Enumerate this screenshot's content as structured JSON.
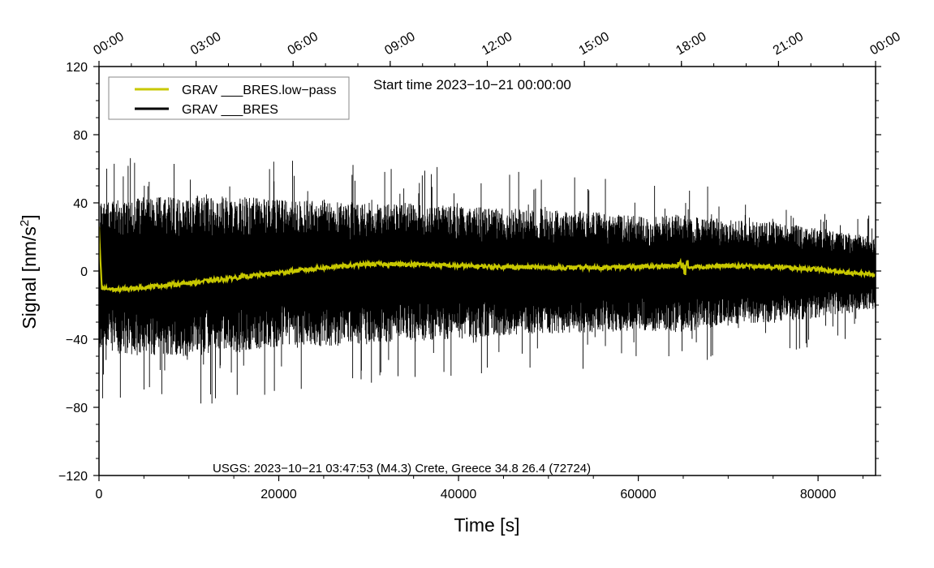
{
  "chart_data": {
    "type": "line",
    "title": "",
    "xlabel": "Time [s]",
    "ylabel_main": "Signal [nm/s",
    "ylabel_sup": "2",
    "ylabel_tail": "]",
    "xlim": [
      0,
      86400
    ],
    "ylim": [
      -120,
      120
    ],
    "x_ticks": [
      0,
      20000,
      40000,
      60000,
      80000
    ],
    "x_tick_labels": [
      "0",
      "20000",
      "40000",
      "60000",
      "80000"
    ],
    "y_ticks": [
      120,
      80,
      40,
      0,
      -40,
      -80,
      -120
    ],
    "y_tick_labels": [
      "120",
      "80",
      "40",
      "0",
      "−40",
      "−80",
      "−120"
    ],
    "top_axis_ticks": [
      0,
      10800,
      21600,
      32400,
      43200,
      54000,
      64800,
      75600,
      86400
    ],
    "top_axis_labels": [
      "00:00",
      "03:00",
      "06:00",
      "09:00",
      "12:00",
      "15:00",
      "18:00",
      "21:00",
      "00:00"
    ],
    "annotation": "Start time 2023−10−21 00:00:00",
    "footer_note": "USGS: 2023−10−21 03:47:53 (M4.3) Crete, Greece 34.8 26.4 (72724)",
    "legend_placement": "top-left",
    "grid": false,
    "series": [
      {
        "name": "GRAV ___BRES.low−pass",
        "color": "#c8c800",
        "x": [
          0,
          300,
          2000,
          6000,
          10000,
          15000,
          20000,
          25000,
          30000,
          35000,
          40000,
          45000,
          50000,
          55000,
          60000,
          64500,
          65000,
          65500,
          66000,
          70000,
          75000,
          80000,
          83000,
          86400
        ],
        "y": [
          25,
          -10,
          -11,
          -9,
          -7,
          -4,
          -1,
          2,
          4,
          4,
          3,
          2.5,
          2,
          2,
          2.5,
          3,
          2,
          2,
          2.5,
          3,
          2.5,
          1,
          -1,
          -2
        ]
      },
      {
        "name": "GRAV ___BRES",
        "color": "#000000",
        "x": [
          0,
          5000,
          10000,
          15000,
          20000,
          25000,
          30000,
          35000,
          40000,
          45000,
          50000,
          55000,
          60000,
          65000,
          70000,
          75000,
          80000,
          86400
        ],
        "upper_envelope": [
          40,
          44,
          44,
          44,
          42,
          42,
          40,
          40,
          38,
          37,
          36,
          35,
          32,
          33,
          30,
          29,
          25,
          20
        ],
        "lower_envelope": [
          -48,
          -50,
          -50,
          -48,
          -45,
          -44,
          -43,
          -41,
          -40,
          -38,
          -37,
          -36,
          -35,
          -36,
          -32,
          -30,
          -28,
          -22
        ]
      }
    ]
  }
}
